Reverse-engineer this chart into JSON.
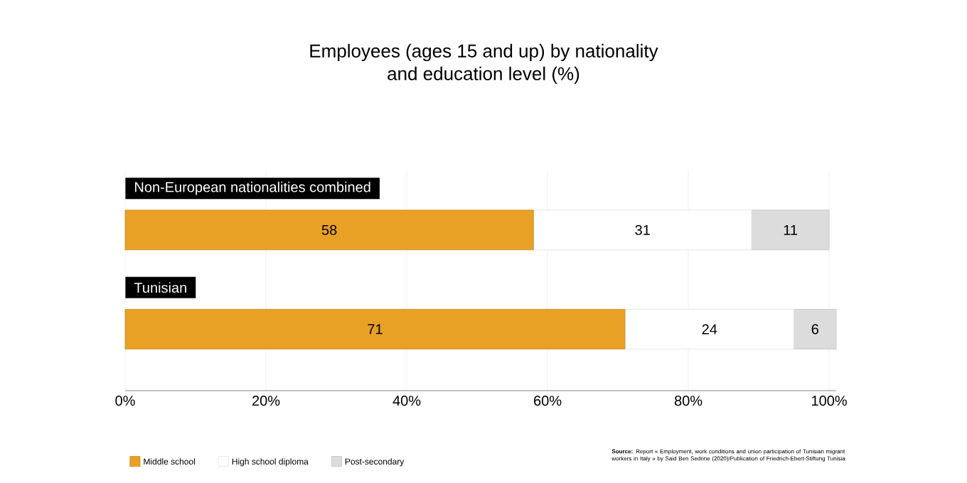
{
  "chart_data": {
    "type": "bar",
    "orientation": "horizontal",
    "stacked": true,
    "title": "Employees (ages 15 and up) by nationality\nand education level (%)",
    "categories": [
      "Non-European nationalities combined",
      "Tunisian"
    ],
    "series": [
      {
        "name": "Middle school",
        "color": "#e8a025",
        "values": [
          58,
          71
        ]
      },
      {
        "name": "High school diploma",
        "color": "#ffffff",
        "values": [
          31,
          24
        ]
      },
      {
        "name": "Post-secondary",
        "color": "#dcdcdc",
        "values": [
          11,
          6
        ]
      }
    ],
    "xlim": [
      0,
      101
    ],
    "xticks": [
      {
        "value": 0,
        "label": "0%"
      },
      {
        "value": 20,
        "label": "20%"
      },
      {
        "value": 40,
        "label": "40%"
      },
      {
        "value": 60,
        "label": "60%"
      },
      {
        "value": 80,
        "label": "80%"
      },
      {
        "value": 100,
        "label": "100%"
      }
    ],
    "grid": "x",
    "legend": "bottom left",
    "data_labels": true,
    "annotations": [
      "**Source:** Report « Employment, work conditions and union participation of Tunisian migrant workers in Italy » by Said Ben Sedrine (2020)/Publication of Friedrich-Ebert-Stiftung Tunisia"
    ]
  }
}
